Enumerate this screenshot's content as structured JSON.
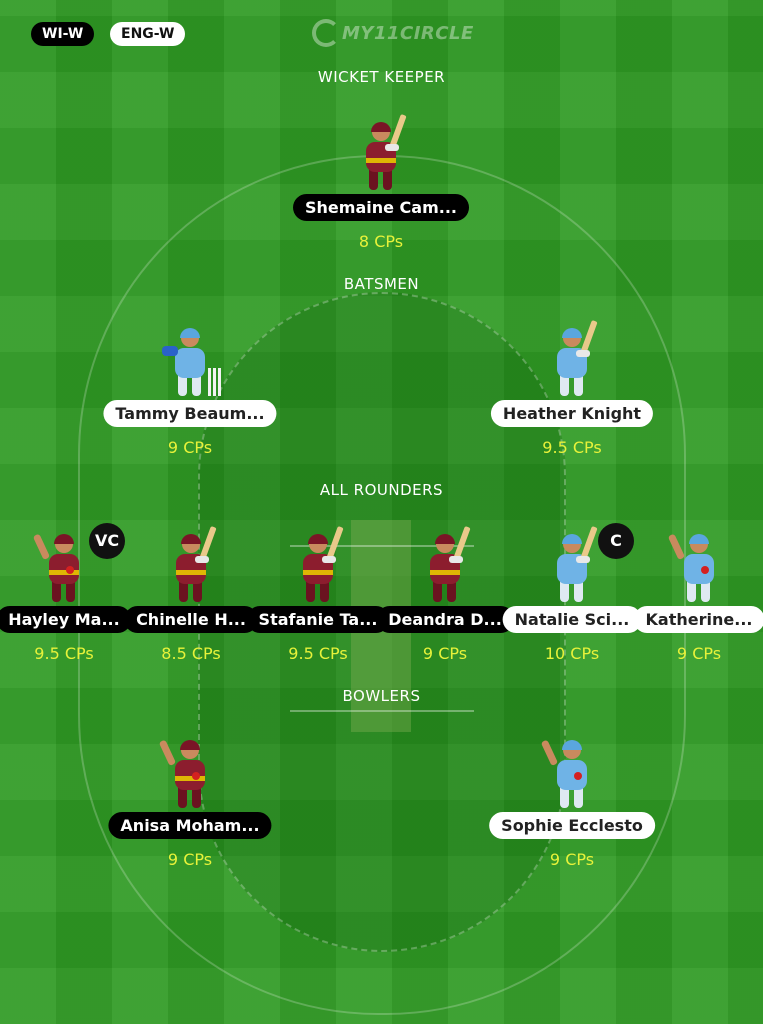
{
  "teams": [
    {
      "code": "WI-W",
      "style": "dark"
    },
    {
      "code": "ENG-W",
      "style": "light"
    }
  ],
  "logo_text": "MY11CIRCLE",
  "colors": {
    "field_green": "#2f9a23",
    "cp_yellow": "#e7f23a",
    "wi_jersey": "#8c1d2e",
    "eng_jersey": "#6fb3e6"
  },
  "sections": {
    "wicket_keeper": "WICKET KEEPER",
    "batsmen": "BATSMEN",
    "all_rounders": "ALL ROUNDERS",
    "bowlers": "BOWLERS"
  },
  "players": {
    "wicket_keeper": [
      {
        "name": "Shemaine Cam...",
        "cps": "8 CPs",
        "team": "WI-W",
        "pose": "batter-icon"
      }
    ],
    "batsmen": [
      {
        "name": "Tammy Beaum...",
        "cps": "9 CPs",
        "team": "ENG-W",
        "pose": "keeper-icon"
      },
      {
        "name": "Heather Knight",
        "cps": "9.5 CPs",
        "team": "ENG-W",
        "pose": "batter-icon"
      }
    ],
    "all_rounders": [
      {
        "name": "Hayley Ma...",
        "cps": "9.5 CPs",
        "team": "WI-W",
        "pose": "bowler-icon",
        "badge": "VC"
      },
      {
        "name": "Chinelle H...",
        "cps": "8.5 CPs",
        "team": "WI-W",
        "pose": "batter-icon"
      },
      {
        "name": "Stafanie Ta...",
        "cps": "9.5 CPs",
        "team": "WI-W",
        "pose": "batter-icon"
      },
      {
        "name": "Deandra D...",
        "cps": "9 CPs",
        "team": "WI-W",
        "pose": "batter-icon"
      },
      {
        "name": "Natalie Sci...",
        "cps": "10 CPs",
        "team": "ENG-W",
        "pose": "batter-icon",
        "badge": "C"
      },
      {
        "name": "Katherine...",
        "cps": "9 CPs",
        "team": "ENG-W",
        "pose": "bowler-icon"
      }
    ],
    "bowlers": [
      {
        "name": "Anisa Moham...",
        "cps": "9 CPs",
        "team": "WI-W",
        "pose": "bowler-icon"
      },
      {
        "name": "Sophie Ecclesto",
        "cps": "9 CPs",
        "team": "ENG-W",
        "pose": "bowler-icon"
      }
    ]
  }
}
